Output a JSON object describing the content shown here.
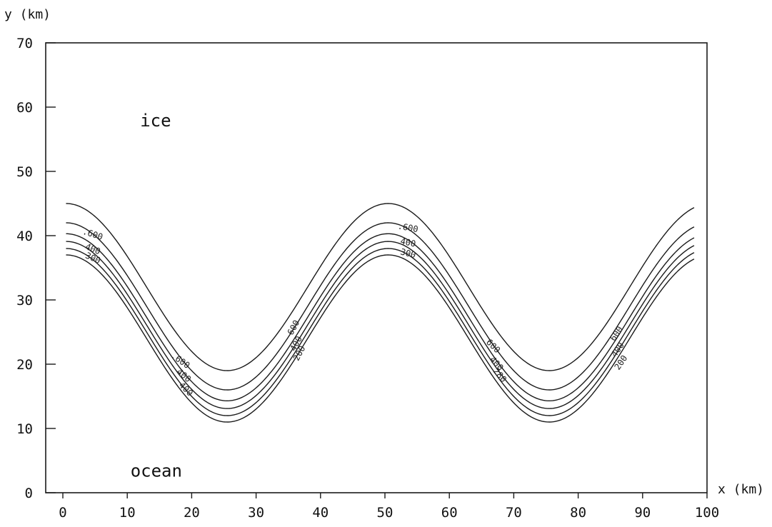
{
  "chart_data": {
    "type": "line",
    "title": "",
    "xlabel": "x  (km)",
    "ylabel": "y  (km)",
    "xlim": [
      0,
      100
    ],
    "ylim": [
      0,
      70
    ],
    "x_ticks": [
      0,
      10,
      20,
      30,
      40,
      50,
      60,
      70,
      80,
      90,
      100
    ],
    "y_ticks": [
      0,
      10,
      20,
      30,
      40,
      50,
      60,
      70
    ],
    "x_tick_labels": [
      "0",
      "10",
      "20",
      "30",
      "40",
      "50",
      "60",
      "70",
      "80",
      "90",
      "100"
    ],
    "y_tick_labels": [
      "0",
      "10",
      "20",
      "30",
      "40",
      "50",
      "60",
      "70"
    ],
    "grid": false,
    "annotations": [
      {
        "text": "ice",
        "x": 12,
        "y": 57
      },
      {
        "text": "ocean",
        "x": 10.5,
        "y": 2.5
      }
    ],
    "series": [
      {
        "x_start": 0.5,
        "x_end": 98,
        "mean": 32.0,
        "amplitude": 13.0,
        "period": 50,
        "trough_x": 25.5
      },
      {
        "x_start": 0.5,
        "x_end": 98,
        "mean": 29.0,
        "amplitude": 13.0,
        "period": 50,
        "trough_x": 25.5
      },
      {
        "x_start": 0.5,
        "x_end": 98,
        "mean": 27.3,
        "amplitude": 13.0,
        "period": 50,
        "trough_x": 25.5
      },
      {
        "x_start": 0.5,
        "x_end": 98,
        "mean": 26.1,
        "amplitude": 13.0,
        "period": 50,
        "trough_x": 25.5
      },
      {
        "x_start": 0.5,
        "x_end": 98,
        "mean": 25.0,
        "amplitude": 13.0,
        "period": 50,
        "trough_x": 25.5
      },
      {
        "x_start": 0.5,
        "x_end": 98,
        "mean": 24.0,
        "amplitude": 13.0,
        "period": 50,
        "trough_x": 25.5
      }
    ],
    "contour_labels": [
      {
        "text": ".600",
        "x": 4.5,
        "y": 39.8,
        "angle": 18
      },
      {
        "text": "400",
        "x": 4.5,
        "y": 37.5,
        "angle": 22
      },
      {
        "text": "300",
        "x": 4.5,
        "y": 36.1,
        "angle": 24
      },
      {
        "text": ".600",
        "x": 18.0,
        "y": 20.2,
        "angle": 35
      },
      {
        "text": "400",
        "x": 18.5,
        "y": 17.9,
        "angle": 40
      },
      {
        "text": "400",
        "x": 18.8,
        "y": 15.8,
        "angle": 45
      },
      {
        "text": "600",
        "x": 36.2,
        "y": 25.5,
        "angle": -62
      },
      {
        "text": "400",
        "x": 36.6,
        "y": 23.0,
        "angle": -62
      },
      {
        "text": "200",
        "x": 37.1,
        "y": 21.5,
        "angle": -62
      },
      {
        "text": ".600",
        "x": 53.5,
        "y": 40.8,
        "angle": 10
      },
      {
        "text": "400",
        "x": 53.5,
        "y": 38.5,
        "angle": 12
      },
      {
        "text": "300",
        "x": 53.5,
        "y": 36.8,
        "angle": 14
      },
      {
        "text": "600",
        "x": 66.5,
        "y": 22.5,
        "angle": 45
      },
      {
        "text": "400",
        "x": 67.0,
        "y": 19.8,
        "angle": 48
      },
      {
        "text": "280",
        "x": 67.5,
        "y": 18.0,
        "angle": 50
      },
      {
        "text": "600",
        "x": 86.3,
        "y": 24.5,
        "angle": -55
      },
      {
        "text": "400",
        "x": 86.5,
        "y": 22.0,
        "angle": -55
      },
      {
        "text": "200",
        "x": 87.0,
        "y": 20.0,
        "angle": -55
      }
    ]
  }
}
